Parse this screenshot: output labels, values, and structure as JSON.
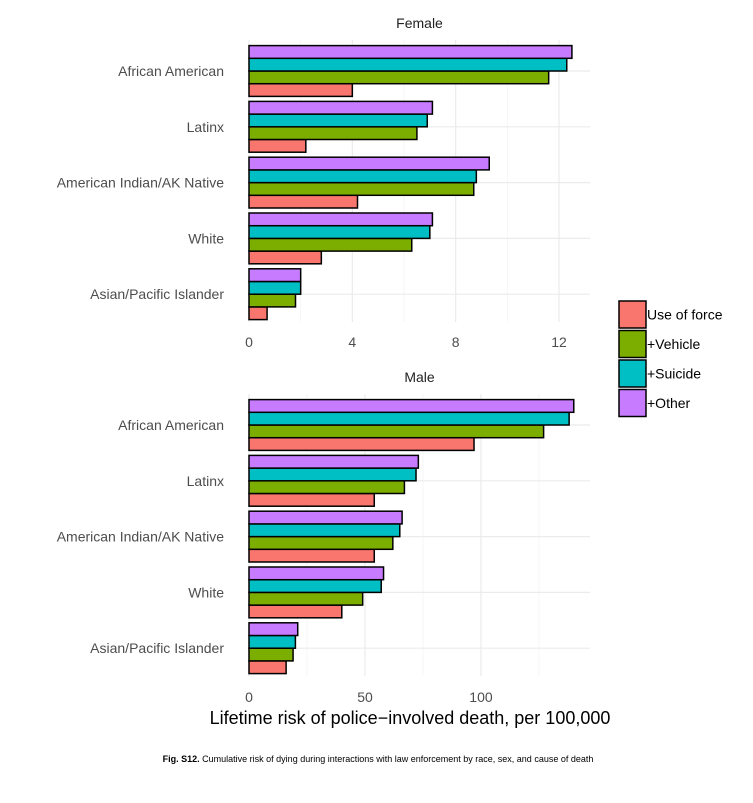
{
  "chart_data": {
    "type": "bar",
    "orientation": "horizontal",
    "xlabel": "Lifetime risk of police−involved death, per 100,000",
    "categories": [
      "Asian/Pacific Islander",
      "White",
      "American Indian/AK Native",
      "Latinx",
      "African American"
    ],
    "legend": {
      "position": "right",
      "entries": [
        {
          "name": "Use of force",
          "color": "#F8766D"
        },
        {
          "name": "+Vehicle",
          "color": "#7CAE00"
        },
        {
          "name": "+Suicide",
          "color": "#00BFC4"
        },
        {
          "name": "+Other",
          "color": "#C77CFF"
        }
      ]
    },
    "panels": [
      {
        "title": "Female",
        "xlim": [
          0,
          13.2
        ],
        "xticks": [
          0,
          4,
          8,
          12
        ],
        "series": [
          {
            "name": "Use of force",
            "values": [
              0.7,
              2.8,
              4.2,
              2.2,
              4.0
            ]
          },
          {
            "name": "+Vehicle",
            "values": [
              1.8,
              6.3,
              8.7,
              6.5,
              11.6
            ]
          },
          {
            "name": "+Suicide",
            "values": [
              2.0,
              7.0,
              8.8,
              6.9,
              12.3
            ]
          },
          {
            "name": "+Other",
            "values": [
              2.0,
              7.1,
              9.3,
              7.1,
              12.5
            ]
          }
        ]
      },
      {
        "title": "Male",
        "xlim": [
          0,
          147
        ],
        "xticks": [
          0,
          50,
          100
        ],
        "series": [
          {
            "name": "Use of force",
            "values": [
              16,
              40,
              54,
              54,
              97
            ]
          },
          {
            "name": "+Vehicle",
            "values": [
              19,
              49,
              62,
              67,
              127
            ]
          },
          {
            "name": "+Suicide",
            "values": [
              20,
              57,
              65,
              72,
              138
            ]
          },
          {
            "name": "+Other",
            "values": [
              21,
              58,
              66,
              73,
              140
            ]
          }
        ]
      }
    ]
  },
  "caption": {
    "bold": "Fig. S12.",
    "text": " Cumulative risk of dying during interactions with law enforcement by race, sex, and cause of death"
  }
}
